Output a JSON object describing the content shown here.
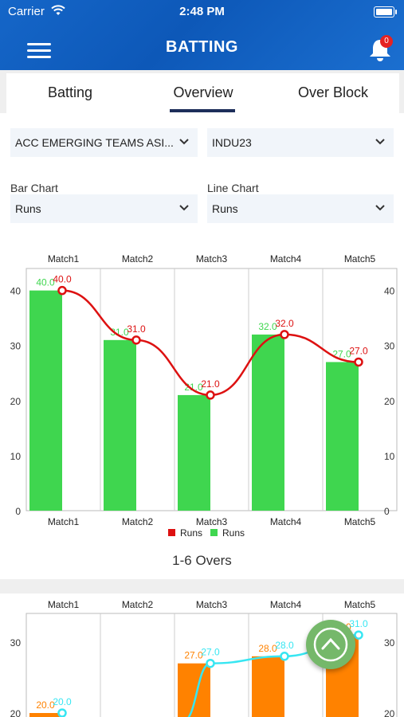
{
  "status_bar": {
    "carrier": "Carrier",
    "time": "2:48 PM"
  },
  "header": {
    "title": "BATTING",
    "notification_count": "0"
  },
  "tabs": [
    {
      "label": "Batting"
    },
    {
      "label": "Overview"
    },
    {
      "label": "Over Block"
    }
  ],
  "active_tab": "Overview",
  "filters": {
    "tournament": "ACC EMERGING TEAMS ASI...",
    "team": "INDU23",
    "bar_chart_label": "Bar Chart",
    "bar_chart_value": "Runs",
    "line_chart_label": "Line Chart",
    "line_chart_value": "Runs"
  },
  "colors": {
    "bar_green": "#3fd64f",
    "line_red": "#dd1111",
    "bar_orange": "#ff8200",
    "line_cyan": "#37e6f2",
    "header_blue": "#1566c8"
  },
  "chart_data": [
    {
      "type": "bar",
      "categories": [
        "Match1",
        "Match2",
        "Match3",
        "Match4",
        "Match5"
      ],
      "series": [
        {
          "name": "Runs",
          "kind": "line",
          "values": [
            40.0,
            31.0,
            21.0,
            32.0,
            27.0
          ]
        },
        {
          "name": "Runs",
          "kind": "bar",
          "values": [
            40.0,
            31.0,
            21.0,
            32.0,
            27.0
          ]
        }
      ],
      "ylim": [
        0,
        44
      ],
      "yticks": [
        0,
        10,
        20,
        30,
        40
      ],
      "legend": "bottom",
      "grid": true
    },
    {
      "type": "bar",
      "title": "1-6 Overs",
      "categories": [
        "Match1",
        "Match2",
        "Match3",
        "Match4",
        "Match5"
      ],
      "series": [
        {
          "kind": "bar",
          "values": [
            20.0,
            null,
            27.0,
            28.0,
            31.0
          ]
        },
        {
          "kind": "line",
          "values": [
            20.0,
            null,
            27.0,
            28.0,
            31.0
          ]
        }
      ],
      "yticks": [
        20,
        30
      ],
      "grid": true
    }
  ]
}
